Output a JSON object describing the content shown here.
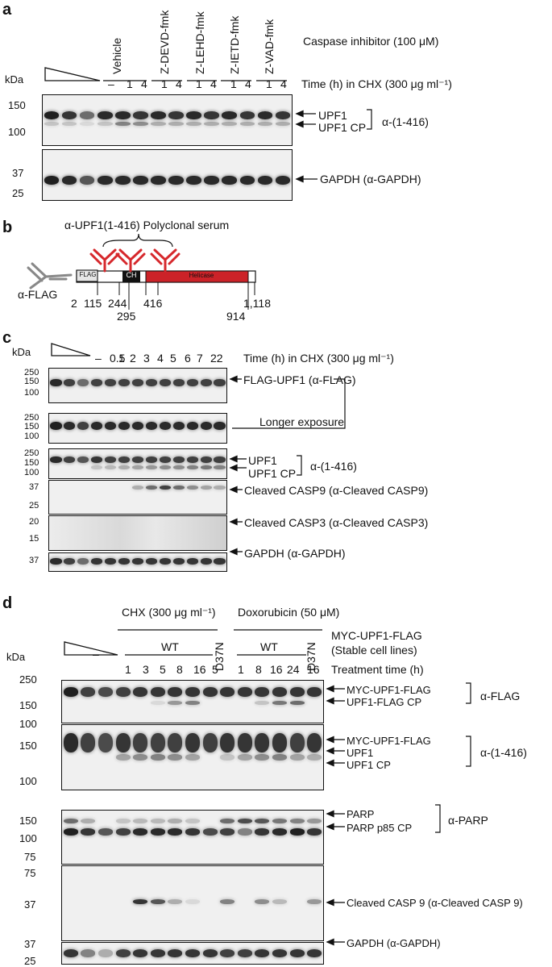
{
  "panel_a": {
    "letter": "a",
    "inhibitor_header": "Caspase inhibitor (100 μM)",
    "treatments": [
      "Vehicle",
      "Z-DEVD-fmk",
      "Z-LEHD-fmk",
      "Z-IETD-fmk",
      "Z-VAD-fmk"
    ],
    "kda": "kDa",
    "time_header": "Time (h) in CHX (300 μg ml⁻¹)",
    "times": [
      "–",
      "1",
      "4",
      "1",
      "4",
      "1",
      "4",
      "1",
      "4",
      "1",
      "4"
    ],
    "mw_top": [
      "150",
      "100"
    ],
    "mw_bottom": [
      "37",
      "25"
    ],
    "labels": {
      "upf1": "UPF1",
      "upf1_cp": "UPF1 CP",
      "antibody": "α-(1-416)",
      "gapdh": "GAPDH (α-GAPDH)"
    }
  },
  "panel_b": {
    "letter": "b",
    "serum_label": "α-UPF1(1-416) Polyclonal serum",
    "flag_ab": "α-FLAG",
    "flag_box": "FLAG",
    "ch_box": "CH",
    "helicase_box": "Helicase",
    "positions": [
      "2",
      "115",
      "244",
      "416",
      "1,118",
      "295",
      "914"
    ]
  },
  "panel_c": {
    "letter": "c",
    "kda": "kDa",
    "time_header": "Time (h) in CHX (300 μg ml⁻¹)",
    "times": [
      "–",
      "0.5",
      "1",
      "2",
      "3",
      "4",
      "5",
      "6",
      "7",
      "22"
    ],
    "mw": {
      "b1": [
        "250",
        "150",
        "100"
      ],
      "b2": [
        "250",
        "150",
        "100"
      ],
      "b3": [
        "250",
        "150",
        "100"
      ],
      "b4": [
        "37",
        "25"
      ],
      "b5": [
        "20",
        "15"
      ],
      "b6": [
        "37"
      ]
    },
    "labels": {
      "flag_upf1": "FLAG-UPF1 (α-FLAG)",
      "longer": "Longer exposure",
      "upf1": "UPF1",
      "upf1_cp": "UPF1 CP",
      "antibody": "α-(1-416)",
      "casp9": "Cleaved CASP9 (α-Cleaved CASP9)",
      "casp3": "Cleaved CASP3 (α-Cleaved CASP3)",
      "gapdh": "GAPDH (α-GAPDH)"
    }
  },
  "panel_d": {
    "letter": "d",
    "kda": "kDa",
    "chx_header": "CHX (300 μg ml⁻¹)",
    "dox_header": "Doxorubicin (50 μM)",
    "construct": "MYC-UPF1-FLAG",
    "stable": "(Stable cell lines)",
    "wt": "WT",
    "d37n": "D37N",
    "dash": "–",
    "treatment_time": "Treatment time (h)",
    "times": [
      "1",
      "3",
      "5",
      "8",
      "16",
      "5",
      "1",
      "8",
      "16",
      "24",
      "16"
    ],
    "mw": {
      "b1": [
        "250",
        "150",
        "100"
      ],
      "b2": [
        "150",
        "100"
      ],
      "b3": [
        "150",
        "100",
        "75"
      ],
      "b4": [
        "75",
        "37"
      ],
      "b5": [
        "37",
        "25"
      ]
    },
    "labels": {
      "myc_upf1_flag": "MYC-UPF1-FLAG",
      "upf1_flag_cp": "UPF1-FLAG CP",
      "alpha_flag": "α-FLAG",
      "upf1": "UPF1",
      "upf1_cp": "UPF1 CP",
      "antibody": "α-(1-416)",
      "parp": "PARP",
      "parp_cp": "PARP p85 CP",
      "alpha_parp": "α-PARP",
      "casp9": "Cleaved CASP 9 (α-Cleaved CASP 9)",
      "gapdh": "GAPDH (α-GAPDH)"
    }
  }
}
